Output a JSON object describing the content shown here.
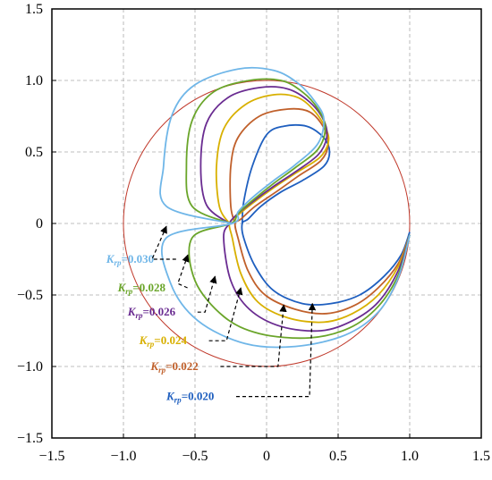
{
  "chart_data": {
    "type": "line",
    "title": "",
    "xlabel": "",
    "ylabel": "",
    "xlim": [
      -1.5,
      1.5
    ],
    "ylim": [
      -1.5,
      1.5
    ],
    "grid": true,
    "x_ticks": [
      "−1.5",
      "−1.0",
      "−0.5",
      "0",
      "0.5",
      "1.0",
      "1.5"
    ],
    "y_ticks": [
      "1.5",
      "1.0",
      "0.5",
      "0",
      "−0.5",
      "−1.0",
      "−1.5"
    ],
    "x_tick_values": [
      -1.5,
      -1.0,
      -0.5,
      0,
      0.5,
      1.0,
      1.5
    ],
    "y_tick_values": [
      1.5,
      1.0,
      0.5,
      0,
      -0.5,
      -1.0,
      -1.5
    ],
    "reference_circle": {
      "center": [
        0,
        0
      ],
      "radius": 1.0,
      "color": "#c0392b"
    },
    "series": [
      {
        "color": "#1f5fbf",
        "label": {
          "k": "K",
          "sub": "rp",
          "value": "=0.020"
        },
        "points": [
          [
            -0.17,
            0.0
          ],
          [
            -0.16,
            0.15
          ],
          [
            -0.1,
            0.4
          ],
          [
            0.0,
            0.62
          ],
          [
            0.12,
            0.68
          ],
          [
            0.28,
            0.68
          ],
          [
            0.4,
            0.6
          ],
          [
            0.44,
            0.5
          ],
          [
            0.4,
            0.4
          ],
          [
            0.25,
            0.3
          ],
          [
            0.1,
            0.22
          ],
          [
            -0.04,
            0.12
          ],
          [
            -0.13,
            0.03
          ],
          [
            -0.17,
            0.0
          ],
          [
            -0.16,
            -0.1
          ],
          [
            -0.08,
            -0.3
          ],
          [
            0.05,
            -0.47
          ],
          [
            0.25,
            -0.56
          ],
          [
            0.45,
            -0.56
          ],
          [
            0.65,
            -0.5
          ],
          [
            0.82,
            -0.37
          ],
          [
            0.94,
            -0.22
          ],
          [
            1.0,
            -0.06
          ]
        ]
      },
      {
        "color": "#c0602b",
        "label": {
          "k": "K",
          "sub": "rp",
          "value": "=0.022"
        },
        "points": [
          [
            -0.22,
            0.0
          ],
          [
            -0.25,
            0.12
          ],
          [
            -0.25,
            0.4
          ],
          [
            -0.2,
            0.6
          ],
          [
            -0.05,
            0.75
          ],
          [
            0.15,
            0.8
          ],
          [
            0.3,
            0.78
          ],
          [
            0.4,
            0.67
          ],
          [
            0.43,
            0.55
          ],
          [
            0.38,
            0.44
          ],
          [
            0.22,
            0.33
          ],
          [
            0.08,
            0.23
          ],
          [
            -0.08,
            0.12
          ],
          [
            -0.18,
            0.03
          ],
          [
            -0.22,
            0.0
          ],
          [
            -0.2,
            -0.1
          ],
          [
            -0.13,
            -0.33
          ],
          [
            -0.01,
            -0.5
          ],
          [
            0.2,
            -0.6
          ],
          [
            0.42,
            -0.63
          ],
          [
            0.62,
            -0.57
          ],
          [
            0.78,
            -0.45
          ],
          [
            0.92,
            -0.28
          ],
          [
            1.0,
            -0.08
          ]
        ]
      },
      {
        "color": "#d8b000",
        "label": {
          "k": "K",
          "sub": "rp",
          "value": "=0.024"
        },
        "points": [
          [
            -0.26,
            0.0
          ],
          [
            -0.33,
            0.12
          ],
          [
            -0.35,
            0.4
          ],
          [
            -0.3,
            0.66
          ],
          [
            -0.15,
            0.83
          ],
          [
            0.05,
            0.9
          ],
          [
            0.22,
            0.88
          ],
          [
            0.34,
            0.78
          ],
          [
            0.42,
            0.65
          ],
          [
            0.43,
            0.56
          ],
          [
            0.37,
            0.46
          ],
          [
            0.2,
            0.35
          ],
          [
            0.05,
            0.25
          ],
          [
            -0.1,
            0.14
          ],
          [
            -0.21,
            0.05
          ],
          [
            -0.26,
            0.0
          ],
          [
            -0.24,
            -0.1
          ],
          [
            -0.18,
            -0.35
          ],
          [
            -0.06,
            -0.55
          ],
          [
            0.15,
            -0.66
          ],
          [
            0.4,
            -0.69
          ],
          [
            0.6,
            -0.63
          ],
          [
            0.78,
            -0.5
          ],
          [
            0.92,
            -0.3
          ],
          [
            1.0,
            -0.08
          ]
        ]
      },
      {
        "color": "#6a2c91",
        "label": {
          "k": "K",
          "sub": "rp",
          "value": "=0.026"
        },
        "points": [
          [
            -0.26,
            0.0
          ],
          [
            -0.42,
            0.13
          ],
          [
            -0.46,
            0.4
          ],
          [
            -0.42,
            0.7
          ],
          [
            -0.27,
            0.88
          ],
          [
            -0.05,
            0.95
          ],
          [
            0.15,
            0.94
          ],
          [
            0.3,
            0.85
          ],
          [
            0.4,
            0.72
          ],
          [
            0.42,
            0.6
          ],
          [
            0.36,
            0.48
          ],
          [
            0.2,
            0.36
          ],
          [
            0.05,
            0.26
          ],
          [
            -0.1,
            0.15
          ],
          [
            -0.21,
            0.06
          ],
          [
            -0.26,
            0.0
          ],
          [
            -0.3,
            -0.1
          ],
          [
            -0.25,
            -0.4
          ],
          [
            -0.12,
            -0.6
          ],
          [
            0.1,
            -0.72
          ],
          [
            0.38,
            -0.75
          ],
          [
            0.6,
            -0.68
          ],
          [
            0.78,
            -0.55
          ],
          [
            0.92,
            -0.33
          ],
          [
            1.0,
            -0.08
          ]
        ]
      },
      {
        "color": "#6aa52a",
        "label": {
          "k": "K",
          "sub": "rp",
          "value": "=0.028"
        },
        "points": [
          [
            -0.25,
            0.0
          ],
          [
            -0.52,
            0.12
          ],
          [
            -0.56,
            0.4
          ],
          [
            -0.52,
            0.72
          ],
          [
            -0.37,
            0.92
          ],
          [
            -0.12,
            1.0
          ],
          [
            0.1,
            1.0
          ],
          [
            0.25,
            0.92
          ],
          [
            0.36,
            0.8
          ],
          [
            0.41,
            0.67
          ],
          [
            0.36,
            0.52
          ],
          [
            0.2,
            0.39
          ],
          [
            0.05,
            0.28
          ],
          [
            -0.1,
            0.16
          ],
          [
            -0.2,
            0.07
          ],
          [
            -0.25,
            0.0
          ],
          [
            -0.52,
            -0.1
          ],
          [
            -0.5,
            -0.4
          ],
          [
            -0.3,
            -0.65
          ],
          [
            -0.05,
            -0.77
          ],
          [
            0.3,
            -0.8
          ],
          [
            0.58,
            -0.73
          ],
          [
            0.78,
            -0.58
          ],
          [
            0.92,
            -0.36
          ],
          [
            1.0,
            -0.08
          ]
        ]
      },
      {
        "color": "#6fb6e8",
        "label": {
          "k": "K",
          "sub": "rp",
          "value": "=0.030"
        },
        "points": [
          [
            -0.24,
            0.0
          ],
          [
            -0.7,
            0.12
          ],
          [
            -0.72,
            0.4
          ],
          [
            -0.66,
            0.76
          ],
          [
            -0.5,
            0.97
          ],
          [
            -0.2,
            1.08
          ],
          [
            0.05,
            1.07
          ],
          [
            0.22,
            0.98
          ],
          [
            0.34,
            0.85
          ],
          [
            0.4,
            0.73
          ],
          [
            0.36,
            0.56
          ],
          [
            0.2,
            0.41
          ],
          [
            0.05,
            0.3
          ],
          [
            -0.1,
            0.18
          ],
          [
            -0.2,
            0.08
          ],
          [
            -0.24,
            0.0
          ],
          [
            -0.7,
            -0.1
          ],
          [
            -0.67,
            -0.42
          ],
          [
            -0.48,
            -0.68
          ],
          [
            -0.15,
            -0.84
          ],
          [
            0.2,
            -0.86
          ],
          [
            0.55,
            -0.78
          ],
          [
            0.78,
            -0.62
          ],
          [
            0.92,
            -0.38
          ],
          [
            1.0,
            -0.08
          ]
        ]
      }
    ],
    "annotations": [
      {
        "series": 5,
        "text_at": [
          -1.12,
          -0.25
        ],
        "arrow_from": [
          -0.8,
          -0.25
        ],
        "arrow_to": [
          -0.7,
          -0.02
        ]
      },
      {
        "series": 4,
        "text_at": [
          -1.04,
          -0.45
        ],
        "arrow_from": [
          -0.62,
          -0.42
        ],
        "arrow_to": [
          -0.55,
          -0.22
        ]
      },
      {
        "series": 3,
        "text_at": [
          -0.97,
          -0.62
        ],
        "arrow_from": [
          -0.43,
          -0.62
        ],
        "arrow_to": [
          -0.36,
          -0.37
        ]
      },
      {
        "series": 2,
        "text_at": [
          -0.89,
          -0.82
        ],
        "arrow_from": [
          -0.28,
          -0.82
        ],
        "arrow_to": [
          -0.18,
          -0.45
        ]
      },
      {
        "series": 1,
        "text_at": [
          -0.81,
          -1.0
        ],
        "arrow_from": [
          0.08,
          -1.0
        ],
        "arrow_to": [
          0.12,
          -0.57
        ]
      },
      {
        "series": 0,
        "text_at": [
          -0.7,
          -1.21
        ],
        "arrow_from": [
          0.3,
          -1.21
        ],
        "arrow_to": [
          0.32,
          -0.56
        ]
      }
    ]
  }
}
